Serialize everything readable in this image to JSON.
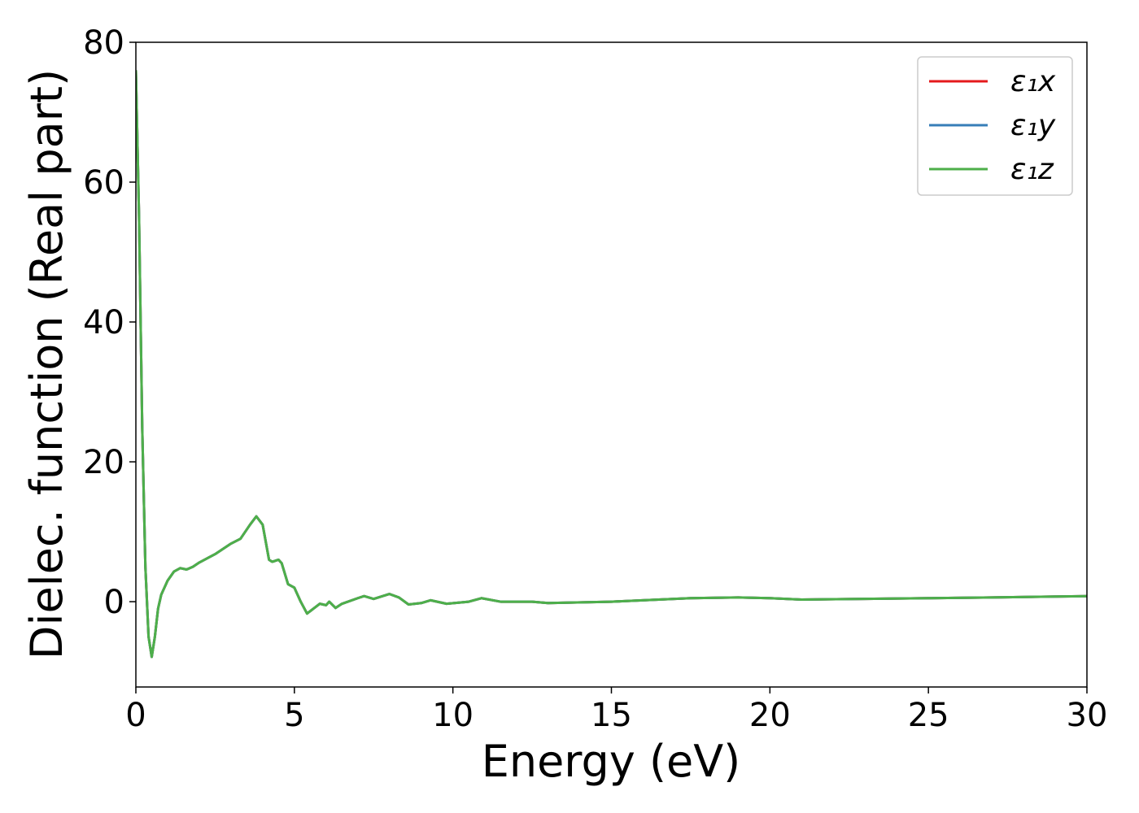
{
  "chart_data": {
    "type": "line",
    "xlabel": "Energy (eV)",
    "ylabel": "Dielec. function (Real part)",
    "x": [
      0,
      0.1,
      0.2,
      0.3,
      0.4,
      0.5,
      0.6,
      0.7,
      0.8,
      1.0,
      1.2,
      1.4,
      1.6,
      1.8,
      2.0,
      2.5,
      3.0,
      3.3,
      3.6,
      3.8,
      4.0,
      4.2,
      4.3,
      4.5,
      4.6,
      4.8,
      5.0,
      5.2,
      5.4,
      5.6,
      5.8,
      6.0,
      6.1,
      6.3,
      6.5,
      7.0,
      7.2,
      7.5,
      8.0,
      8.3,
      8.6,
      9.0,
      9.3,
      9.8,
      10.5,
      10.9,
      11.5,
      12.5,
      13.0,
      15,
      17.5,
      19,
      20,
      21,
      23,
      25,
      27,
      30
    ],
    "series": [
      {
        "name": "ε₁x",
        "color": "#e41a1c",
        "values": [
          76,
          55,
          25,
          5,
          -5,
          -7.9,
          -5,
          -1,
          1,
          3,
          4.3,
          4.8,
          4.6,
          5,
          5.6,
          6.8,
          8.3,
          9,
          11,
          12.2,
          11,
          6,
          5.7,
          6,
          5.5,
          2.5,
          2,
          0,
          -1.7,
          -1,
          -0.3,
          -0.5,
          0,
          -0.9,
          -0.3,
          0.5,
          0.8,
          0.4,
          1.1,
          0.6,
          -0.4,
          -0.2,
          0.2,
          -0.3,
          0,
          0.5,
          0,
          0,
          -0.2,
          0,
          0.5,
          0.6,
          0.5,
          0.3,
          0.4,
          0.5,
          0.6,
          0.8
        ]
      },
      {
        "name": "ε₁y",
        "color": "#377eb8",
        "values": [
          76,
          55,
          25,
          5,
          -5,
          -7.9,
          -5,
          -1,
          1,
          3,
          4.3,
          4.8,
          4.6,
          5,
          5.6,
          6.8,
          8.3,
          9,
          11,
          12.2,
          11,
          6,
          5.7,
          6,
          5.5,
          2.5,
          2,
          0,
          -1.7,
          -1,
          -0.3,
          -0.5,
          0,
          -0.9,
          -0.3,
          0.5,
          0.8,
          0.4,
          1.1,
          0.6,
          -0.4,
          -0.2,
          0.2,
          -0.3,
          0,
          0.5,
          0,
          0,
          -0.2,
          0,
          0.5,
          0.6,
          0.5,
          0.3,
          0.4,
          0.5,
          0.6,
          0.8
        ]
      },
      {
        "name": "ε₁z",
        "color": "#4daf4a",
        "values": [
          76,
          55,
          25,
          5,
          -5,
          -7.9,
          -5,
          -1,
          1,
          3,
          4.3,
          4.8,
          4.6,
          5,
          5.6,
          6.8,
          8.3,
          9,
          11,
          12.2,
          11,
          6,
          5.7,
          6,
          5.5,
          2.5,
          2,
          0,
          -1.7,
          -1,
          -0.3,
          -0.5,
          0,
          -0.9,
          -0.3,
          0.5,
          0.8,
          0.4,
          1.1,
          0.6,
          -0.4,
          -0.2,
          0.2,
          -0.3,
          0,
          0.5,
          0,
          0,
          -0.2,
          0,
          0.5,
          0.6,
          0.5,
          0.3,
          0.4,
          0.5,
          0.6,
          0.8
        ]
      }
    ],
    "xlim": [
      0,
      30
    ],
    "xticks": [
      0,
      5,
      10,
      15,
      20,
      25,
      30
    ],
    "ylim": [
      -12.2,
      80
    ],
    "yticks": [
      0,
      20,
      40,
      60,
      80
    ],
    "grid": false,
    "legend": "upper right"
  }
}
